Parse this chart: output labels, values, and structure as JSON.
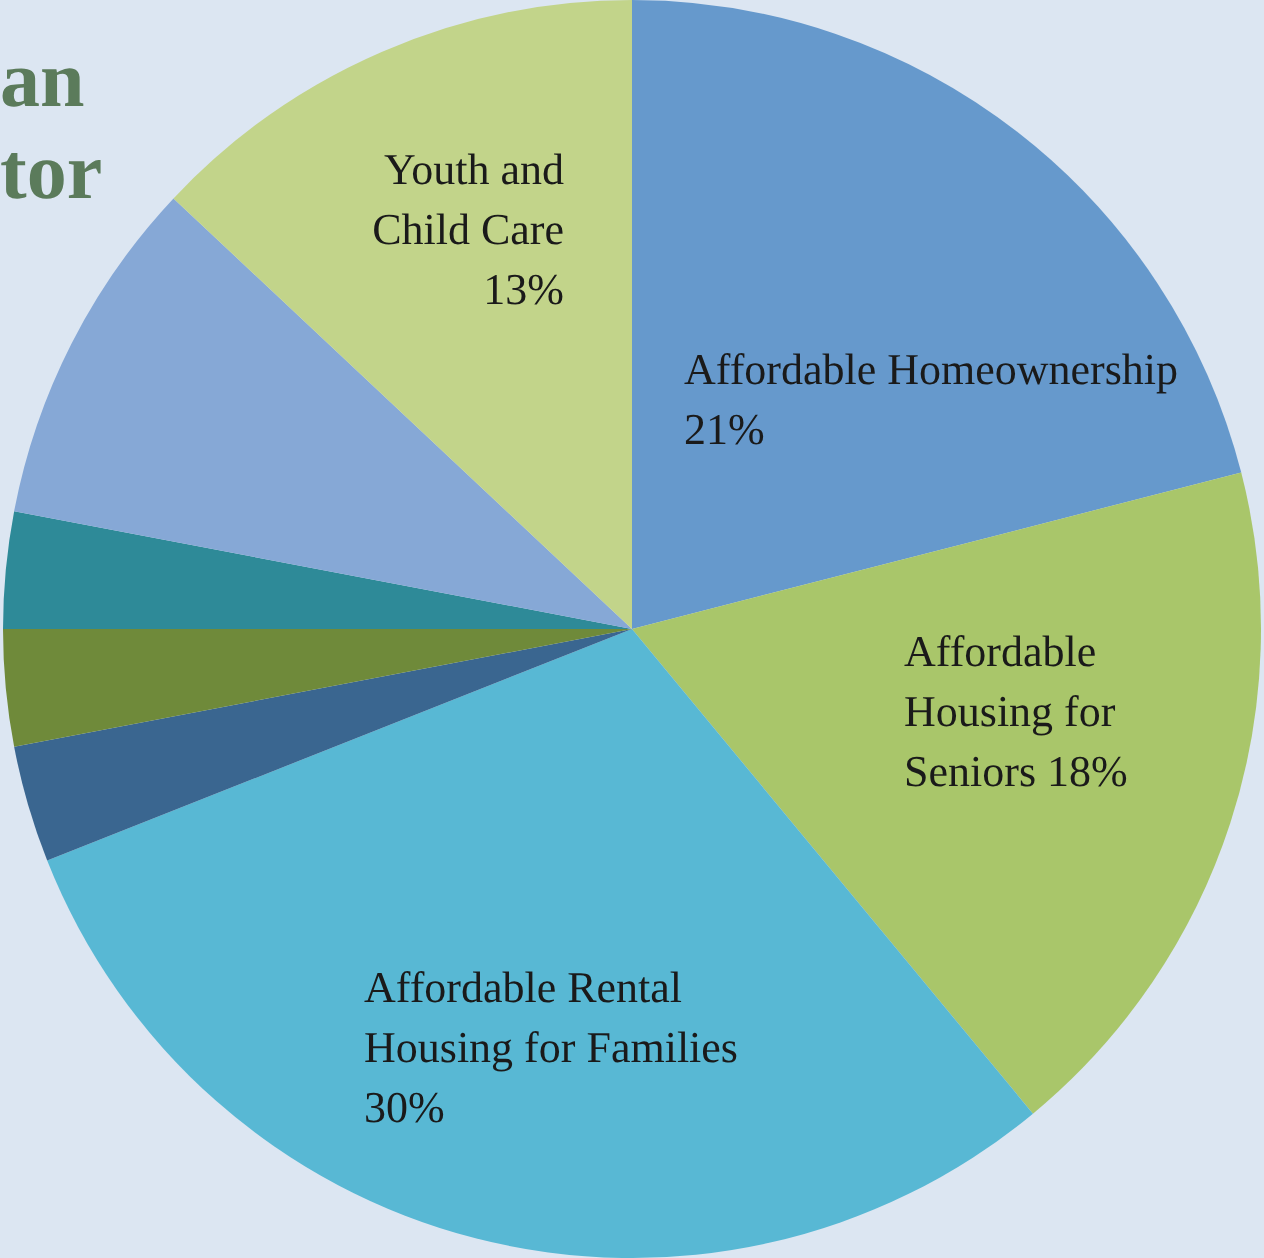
{
  "chart_data": {
    "type": "pie",
    "annotations": [
      "an",
      "tor"
    ],
    "categories": [
      "Affordable Homeownership",
      "Affordable Housing for Seniors",
      "Affordable Rental Housing for Families",
      null,
      null,
      null,
      null,
      "Youth and Child Care"
    ],
    "values": [
      21,
      18,
      30,
      3,
      3,
      3,
      9,
      13
    ],
    "value_labels": [
      "21%",
      "18%",
      "30%",
      null,
      null,
      null,
      null,
      "13%"
    ],
    "colors": [
      "#6699cc",
      "#a9c66a",
      "#58b8d4",
      "#3a6690",
      "#6f8a3a",
      "#2e8a98",
      "#86a8d6",
      "#c2d48a"
    ]
  }
}
